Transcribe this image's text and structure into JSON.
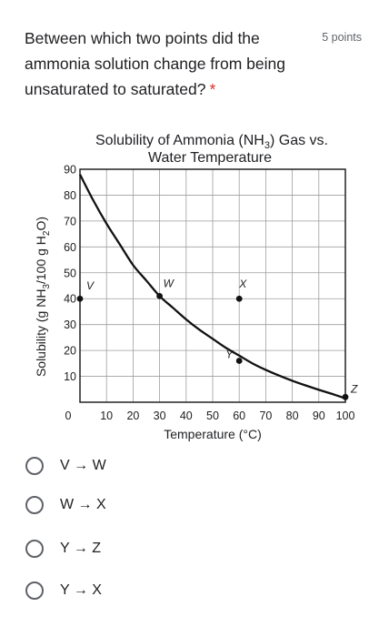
{
  "question": {
    "text": "Between which two points did the ammonia solution change from being unsaturated to saturated?",
    "required_mark": "*",
    "points": "5 points"
  },
  "options": [
    {
      "label": "V → W"
    },
    {
      "label": "W → X"
    },
    {
      "label": "Y → Z"
    },
    {
      "label": "Y → X"
    }
  ],
  "chart_data": {
    "type": "line",
    "title": "Solubility of Ammonia (NH3) Gas vs. Water Temperature",
    "title_line1": "Solubility of Ammonia (NH",
    "title_sub": "3",
    "title_line1_end": ") Gas vs.",
    "title_line2": "Water Temperature",
    "xlabel": "Temperature (°C)",
    "ylabel": "Solubility (g NH3/100 g H2O)",
    "ylabel_parts": [
      "Solubility (g NH",
      "3",
      "/100 g H",
      "2",
      "O)"
    ],
    "xlim": [
      0,
      100
    ],
    "ylim": [
      0,
      90
    ],
    "x_ticks": [
      0,
      10,
      20,
      30,
      40,
      50,
      60,
      70,
      80,
      90,
      100
    ],
    "y_ticks": [
      10,
      20,
      30,
      40,
      50,
      60,
      70,
      80,
      90
    ],
    "grid": true,
    "curve": {
      "x": [
        0,
        5,
        10,
        15,
        20,
        25,
        30,
        35,
        40,
        45,
        50,
        55,
        60,
        65,
        70,
        75,
        80,
        85,
        90,
        95,
        100
      ],
      "y": [
        88,
        78,
        69,
        61,
        53,
        47,
        41,
        36.5,
        32,
        28,
        24.5,
        21,
        18,
        15,
        12.5,
        10.3,
        8.3,
        6.5,
        4.8,
        3.2,
        1.5
      ]
    },
    "points": [
      {
        "label": "V",
        "x": 0,
        "y": 40
      },
      {
        "label": "W",
        "x": 30,
        "y": 41
      },
      {
        "label": "X",
        "x": 60,
        "y": 40
      },
      {
        "label": "Y",
        "x": 60,
        "y": 16
      },
      {
        "label": "Z",
        "x": 100,
        "y": 2
      }
    ],
    "colors": {
      "grid": "#9e9e9e",
      "line": "#111111",
      "axis": "#222222"
    }
  }
}
